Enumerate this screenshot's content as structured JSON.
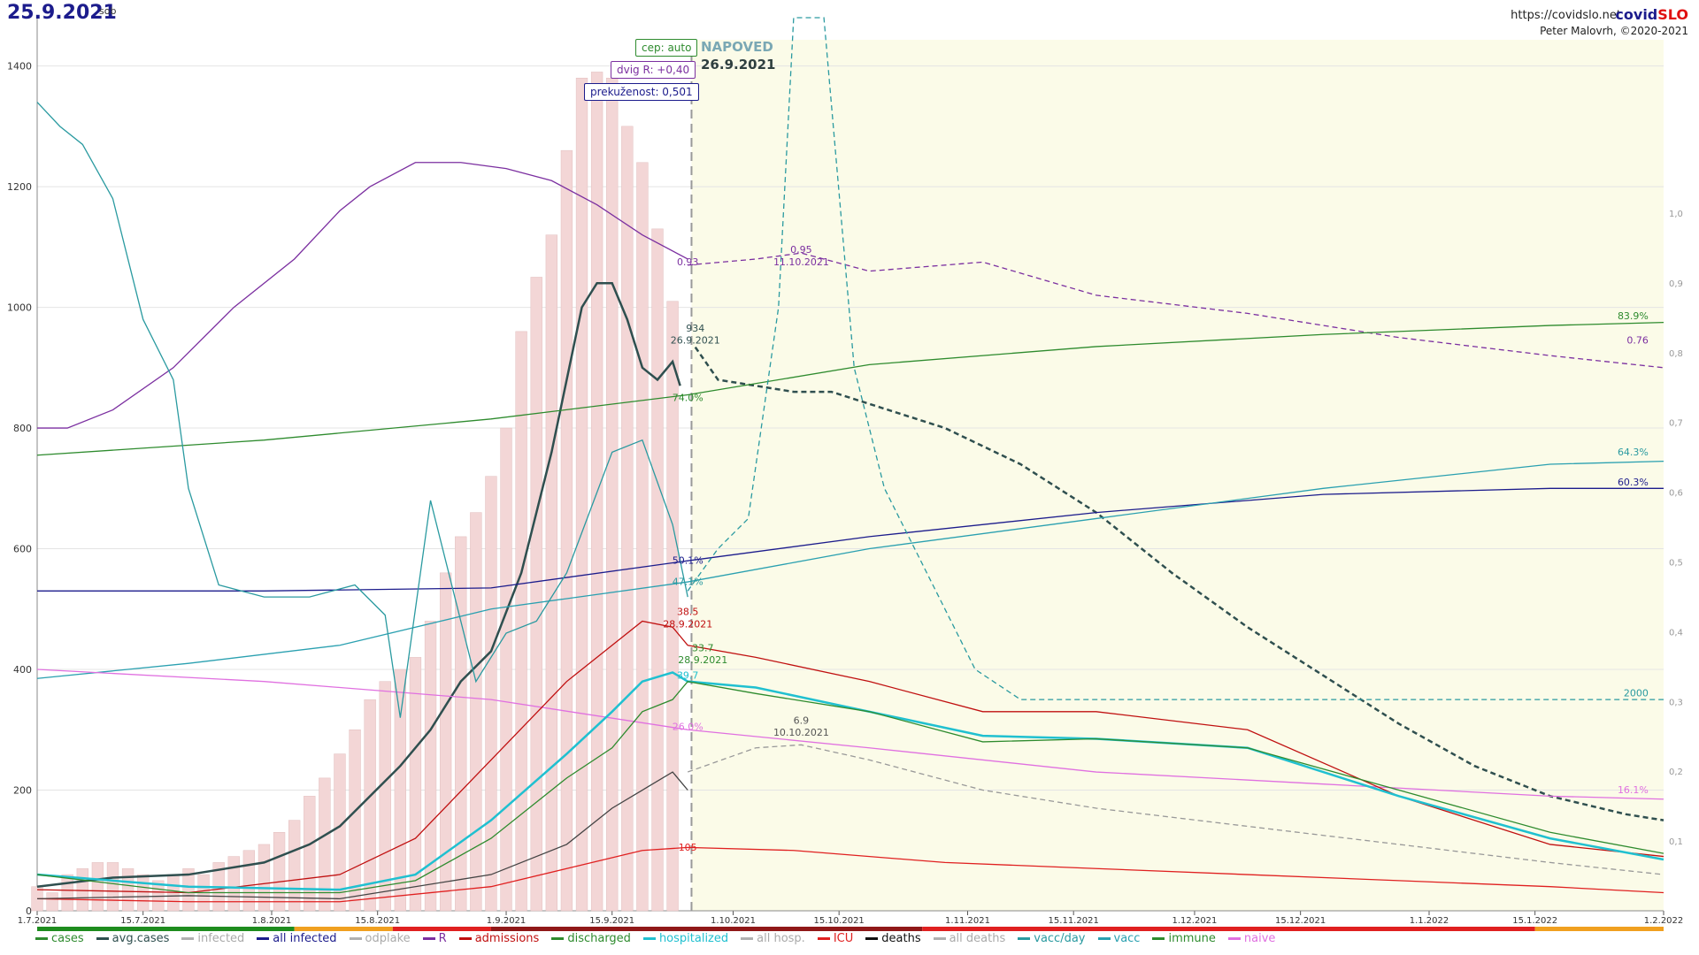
{
  "header": {
    "date": "25.9.2021",
    "weekday": "sob",
    "url": "https://covidslo.net",
    "brand_a": "covid",
    "brand_b": "SLO",
    "author": "Peter Malovrh, ©2020-2021"
  },
  "forecast": {
    "badge_cep": "cep: auto",
    "badge_dvig": "dvig R: +0,40",
    "badge_prek": "prekuženost: 0,501",
    "label": "NAPOVED",
    "date": "26.9.2021"
  },
  "legend": [
    {
      "name": "cases",
      "color": "#2e8b2e"
    },
    {
      "name": "avg.cases",
      "color": "#2f4f4f"
    },
    {
      "name": "infected",
      "color": "#b0b0b0"
    },
    {
      "name": "all infected",
      "color": "#1c1c8c"
    },
    {
      "name": "odplake",
      "color": "#b0b0b0"
    },
    {
      "name": "R",
      "color": "#7b2fa0"
    },
    {
      "name": "admissions",
      "color": "#c01010"
    },
    {
      "name": "discharged",
      "color": "#2e8b2e"
    },
    {
      "name": "hospitalized",
      "color": "#20c0d0"
    },
    {
      "name": "all hosp.",
      "color": "#b0b0b0"
    },
    {
      "name": "ICU",
      "color": "#e02020"
    },
    {
      "name": "deaths",
      "color": "#111111"
    },
    {
      "name": "all deaths",
      "color": "#b0b0b0"
    },
    {
      "name": "vacc/day",
      "color": "#2a9aa0"
    },
    {
      "name": "vacc",
      "color": "#2aa0b0"
    },
    {
      "name": "immune",
      "color": "#2e8b2e"
    },
    {
      "name": "naive",
      "color": "#e070e0"
    }
  ],
  "chart_data": {
    "type": "line",
    "x_ticks": [
      "1.7.2021",
      "15.7.2021",
      "1.8.2021",
      "15.8.2021",
      "1.9.2021",
      "15.9.2021",
      "1.10.2021",
      "15.10.2021",
      "1.11.2021",
      "15.11.2021",
      "1.12.2021",
      "15.12.2021",
      "1.1.2022",
      "15.1.2022",
      "1.2.2022"
    ],
    "x_tick_day": [
      0,
      14,
      31,
      45,
      62,
      76,
      92,
      106,
      123,
      137,
      153,
      167,
      184,
      198,
      215
    ],
    "xlim_day": [
      0,
      215
    ],
    "forecast_day": 86.5,
    "y_left": {
      "ticks": [
        0,
        200,
        400,
        600,
        800,
        1000,
        1200,
        1400
      ],
      "ylim": [
        0,
        1480
      ]
    },
    "y_right": {
      "ticks": [
        "0,1",
        "0,2",
        "0,3",
        "0,4",
        "0,5",
        "0,6",
        "0,7",
        "0,8",
        "0,9",
        "1,0"
      ],
      "ylim": [
        0,
        1.28
      ]
    },
    "series": {
      "avg_cases": {
        "color": "#2f4f4f",
        "x": [
          0,
          10,
          20,
          30,
          36,
          40,
          44,
          48,
          52,
          56,
          60,
          64,
          68,
          70,
          72,
          74,
          76,
          78,
          80,
          82,
          84,
          85
        ],
        "y": [
          40,
          55,
          60,
          80,
          110,
          140,
          190,
          240,
          300,
          380,
          430,
          560,
          760,
          880,
          1000,
          1040,
          1040,
          980,
          900,
          880,
          910,
          870
        ]
      },
      "avg_cases_forecast": {
        "color": "#2f4f4f",
        "dash": true,
        "x": [
          87,
          90,
          95,
          100,
          105,
          110,
          120,
          130,
          140,
          150,
          160,
          170,
          180,
          190,
          200,
          210,
          215
        ],
        "y": [
          934,
          880,
          870,
          860,
          860,
          840,
          800,
          740,
          660,
          560,
          470,
          390,
          310,
          240,
          190,
          160,
          150
        ]
      },
      "R": {
        "color": "#7b2fa0",
        "x": [
          0,
          4,
          10,
          18,
          26,
          34,
          40,
          44,
          50,
          56,
          62,
          68,
          74,
          80,
          86
        ],
        "y": [
          800,
          800,
          830,
          900,
          1000,
          1080,
          1160,
          1200,
          1240,
          1240,
          1230,
          1210,
          1170,
          1120,
          1080
        ],
        "note": "R plotted on right axis scale"
      },
      "R_forecast": {
        "color": "#7b2fa0",
        "dash": true,
        "x": [
          86,
          95,
          101,
          110,
          125,
          140,
          160,
          180,
          200,
          215
        ],
        "y": [
          1070,
          1080,
          1090,
          1060,
          1075,
          1020,
          990,
          950,
          920,
          900
        ]
      },
      "all_infected": {
        "color": "#1c1c8c",
        "x": [
          0,
          30,
          60,
          86,
          110,
          140,
          170,
          200,
          215
        ],
        "y": [
          530,
          530,
          535,
          580,
          620,
          660,
          690,
          700,
          700
        ]
      },
      "vacc": {
        "color": "#2aa0b0",
        "x": [
          0,
          20,
          40,
          60,
          86,
          110,
          140,
          170,
          200,
          215
        ],
        "y": [
          385,
          410,
          440,
          500,
          545,
          600,
          650,
          700,
          740,
          745
        ]
      },
      "immune": {
        "color": "#2e8b2e",
        "x": [
          0,
          30,
          60,
          86,
          110,
          140,
          170,
          200,
          215
        ],
        "y": [
          755,
          780,
          815,
          855,
          905,
          935,
          955,
          970,
          975
        ]
      },
      "naive": {
        "color": "#e070e0",
        "x": [
          0,
          30,
          60,
          86,
          110,
          140,
          170,
          200,
          215
        ],
        "y": [
          400,
          380,
          350,
          300,
          270,
          230,
          210,
          190,
          185
        ]
      },
      "admissions": {
        "color": "#c01010",
        "x": [
          0,
          20,
          40,
          50,
          60,
          70,
          76,
          80,
          84,
          86,
          95,
          110,
          125,
          140,
          160,
          180,
          200,
          215
        ],
        "y": [
          35,
          30,
          60,
          120,
          250,
          380,
          440,
          480,
          470,
          440,
          420,
          380,
          330,
          330,
          300,
          190,
          110,
          90
        ]
      },
      "hospitalized": {
        "color": "#20c0d0",
        "x": [
          0,
          20,
          40,
          50,
          60,
          70,
          76,
          80,
          84,
          86,
          95,
          110,
          125,
          140,
          160,
          180,
          200,
          215
        ],
        "y": [
          60,
          40,
          35,
          60,
          150,
          260,
          330,
          380,
          395,
          380,
          370,
          330,
          290,
          285,
          270,
          190,
          120,
          85
        ]
      },
      "discharged": {
        "color": "#2e8b2e",
        "x": [
          0,
          20,
          40,
          50,
          60,
          70,
          76,
          80,
          84,
          86,
          95,
          110,
          125,
          140,
          160,
          180,
          200,
          215
        ],
        "y": [
          60,
          30,
          30,
          50,
          120,
          220,
          270,
          330,
          350,
          380,
          360,
          330,
          280,
          285,
          270,
          200,
          130,
          95
        ]
      },
      "ICU": {
        "color": "#e02020",
        "x": [
          0,
          20,
          40,
          60,
          70,
          80,
          86,
          100,
          120,
          140,
          160,
          180,
          200,
          215
        ],
        "y": [
          20,
          15,
          15,
          40,
          70,
          100,
          105,
          100,
          80,
          70,
          60,
          50,
          40,
          30
        ]
      },
      "deaths": {
        "color": "#444444",
        "x": [
          0,
          20,
          40,
          60,
          70,
          76,
          80,
          84,
          86
        ],
        "y": [
          20,
          25,
          20,
          60,
          110,
          170,
          200,
          230,
          200
        ]
      },
      "deaths_forecast": {
        "color": "#999999",
        "dash": true,
        "x": [
          86,
          95,
          101,
          110,
          125,
          140,
          160,
          180,
          200,
          215
        ],
        "y": [
          230,
          270,
          275,
          250,
          200,
          170,
          140,
          110,
          80,
          60
        ]
      },
      "vacc_day": {
        "color": "#2a9aa0",
        "x": [
          0,
          3,
          6,
          10,
          14,
          18,
          20,
          24,
          30,
          36,
          42,
          46,
          48,
          52,
          58,
          62,
          66,
          70,
          76,
          80,
          84,
          86
        ],
        "y": [
          1340,
          1300,
          1270,
          1180,
          980,
          880,
          700,
          540,
          520,
          520,
          540,
          490,
          320,
          680,
          380,
          460,
          480,
          560,
          760,
          780,
          640,
          520
        ]
      },
      "vacc_day_forecast": {
        "color": "#2a9aa0",
        "dash": true,
        "x": [
          86,
          90,
          94,
          98,
          100,
          104,
          108,
          112,
          116,
          120,
          124,
          130,
          215
        ],
        "y": [
          530,
          600,
          650,
          1000,
          1480,
          1480,
          900,
          700,
          600,
          500,
          400,
          350,
          350
        ]
      }
    },
    "cases_bars": {
      "color": "#f3d6d6",
      "x": [
        0,
        2,
        4,
        6,
        8,
        10,
        12,
        14,
        16,
        18,
        20,
        22,
        24,
        26,
        28,
        30,
        32,
        34,
        36,
        38,
        40,
        42,
        44,
        46,
        48,
        50,
        52,
        54,
        56,
        58,
        60,
        62,
        64,
        66,
        68,
        70,
        72,
        74,
        76,
        78,
        80,
        82,
        84
      ],
      "y": [
        40,
        30,
        60,
        70,
        80,
        80,
        70,
        60,
        50,
        60,
        70,
        60,
        80,
        90,
        100,
        110,
        130,
        150,
        190,
        220,
        260,
        300,
        350,
        380,
        400,
        420,
        480,
        560,
        620,
        660,
        720,
        800,
        960,
        1050,
        1120,
        1260,
        1380,
        1390,
        1380,
        1300,
        1240,
        1130,
        1010
      ]
    },
    "annotations": [
      {
        "x": 86,
        "y": 1070,
        "text": "0.93",
        "color": "#7b2fa0"
      },
      {
        "x": 101,
        "y": 1090,
        "text": "0,95",
        "color": "#7b2fa0"
      },
      {
        "x": 101,
        "y": 1070,
        "text": "11.10.2021",
        "color": "#7b2fa0"
      },
      {
        "x": 87,
        "y": 960,
        "text": "934",
        "color": "#2f4f4f"
      },
      {
        "x": 87,
        "y": 940,
        "text": "26.9.2021",
        "color": "#2f4f4f"
      },
      {
        "x": 86,
        "y": 845,
        "text": "74.0%",
        "color": "#2e8b2e"
      },
      {
        "x": 86,
        "y": 575,
        "text": "50.1%",
        "color": "#1c1c8c"
      },
      {
        "x": 86,
        "y": 540,
        "text": "47.1%",
        "color": "#2a9aa0"
      },
      {
        "x": 86,
        "y": 490,
        "text": "38.5",
        "color": "#c01010"
      },
      {
        "x": 86,
        "y": 470,
        "text": "28.9.2021",
        "color": "#c01010"
      },
      {
        "x": 88,
        "y": 430,
        "text": "33.7",
        "color": "#2e8b2e"
      },
      {
        "x": 88,
        "y": 410,
        "text": "28.9.2021",
        "color": "#2e8b2e"
      },
      {
        "x": 86,
        "y": 385,
        "text": "39.7",
        "color": "#20c0d0"
      },
      {
        "x": 86,
        "y": 300,
        "text": "26.0%",
        "color": "#e070e0"
      },
      {
        "x": 101,
        "y": 310,
        "text": "6.9",
        "color": "#555555"
      },
      {
        "x": 101,
        "y": 290,
        "text": "10.10.2021",
        "color": "#555555"
      },
      {
        "x": 86,
        "y": 100,
        "text": "105",
        "color": "#e02020"
      },
      {
        "x": 213,
        "y": 980,
        "text": "83.9%",
        "color": "#2e8b2e"
      },
      {
        "x": 213,
        "y": 940,
        "text": "0.76",
        "color": "#7b2fa0"
      },
      {
        "x": 213,
        "y": 755,
        "text": "64.3%",
        "color": "#2a9aa0"
      },
      {
        "x": 213,
        "y": 705,
        "text": "60.3%",
        "color": "#1c1c8c"
      },
      {
        "x": 213,
        "y": 355,
        "text": "2000",
        "color": "#2a9aa0"
      },
      {
        "x": 213,
        "y": 195,
        "text": "16.1%",
        "color": "#e070e0"
      }
    ]
  }
}
